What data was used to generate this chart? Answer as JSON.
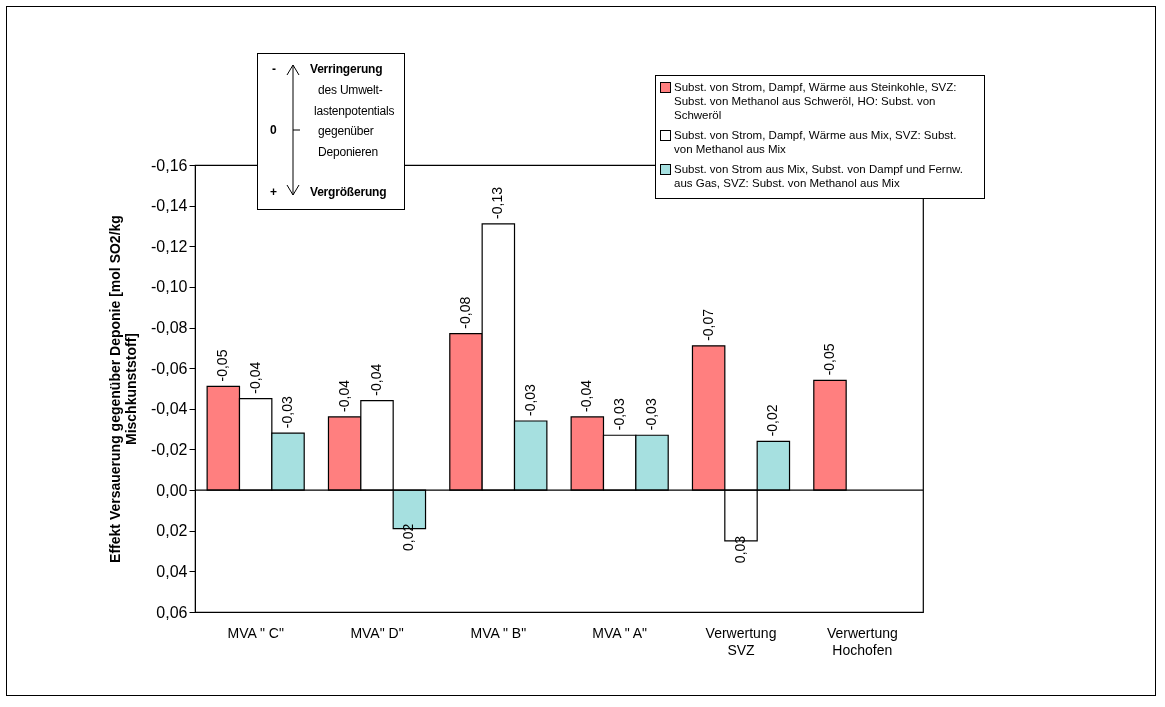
{
  "chart_data": {
    "type": "bar",
    "ylabel": "Effekt Versauerung gegenüber Deponie [mol SO2/kg Mischkunststoff]",
    "categories": [
      "MVA \" C\"",
      "MVA\" D\"",
      "MVA \" B\"",
      "MVA \" A\"",
      "Verwertung SVZ",
      "Verwertung Hochofen"
    ],
    "series": [
      {
        "name": "Subst. von Strom, Dampf, Wärme aus Steinkohle, SVZ: Subst. von Methanol aus Schweröl, HO: Subst. von Schweröl",
        "color": "#ff7f7f",
        "values": [
          -0.051,
          -0.036,
          -0.077,
          -0.036,
          -0.071,
          -0.054
        ],
        "value_labels": [
          "-0,05",
          "-0,04",
          "-0,08",
          "-0,04",
          "-0,07",
          "-0,05"
        ]
      },
      {
        "name": "Subst. von Strom, Dampf, Wärme aus Mix, SVZ: Subst. von Methanol aus Mix",
        "color": "#ffffff",
        "values": [
          -0.045,
          -0.044,
          -0.131,
          -0.027,
          0.025,
          null
        ],
        "value_labels": [
          "-0,04",
          "-0,04",
          "-0,13",
          "-0,03",
          "0,03",
          null
        ]
      },
      {
        "name": "Subst. von Strom aus Mix, Subst. von Dampf und Fernw. aus Gas, SVZ: Subst. von Methanol aus Mix",
        "color": "#a6e0e0",
        "values": [
          -0.028,
          0.019,
          -0.034,
          -0.027,
          -0.024,
          null
        ],
        "value_labels": [
          "-0,03",
          "0,02",
          "-0,03",
          "-0,03",
          "-0,02",
          null
        ]
      }
    ],
    "ylim": [
      0.06,
      -0.16
    ],
    "yticks": [
      {
        "value": -0.16,
        "label": "-0,16"
      },
      {
        "value": -0.14,
        "label": "-0,14"
      },
      {
        "value": -0.12,
        "label": "-0,12"
      },
      {
        "value": -0.1,
        "label": "-0,10"
      },
      {
        "value": -0.08,
        "label": "-0,08"
      },
      {
        "value": -0.06,
        "label": "-0,06"
      },
      {
        "value": -0.04,
        "label": "-0,04"
      },
      {
        "value": -0.02,
        "label": "-0,02"
      },
      {
        "value": 0,
        "label": "0,00"
      },
      {
        "value": 0.02,
        "label": "0,02"
      },
      {
        "value": 0.04,
        "label": "0,04"
      },
      {
        "value": 0.06,
        "label": "0,06"
      }
    ],
    "legend": "top right",
    "annotations": [
      "-",
      "Verringerung",
      "des Umwelt-",
      "lastenpotentials",
      "gegenüber",
      "Deponieren",
      "0",
      "+",
      "Vergrößerung"
    ]
  }
}
